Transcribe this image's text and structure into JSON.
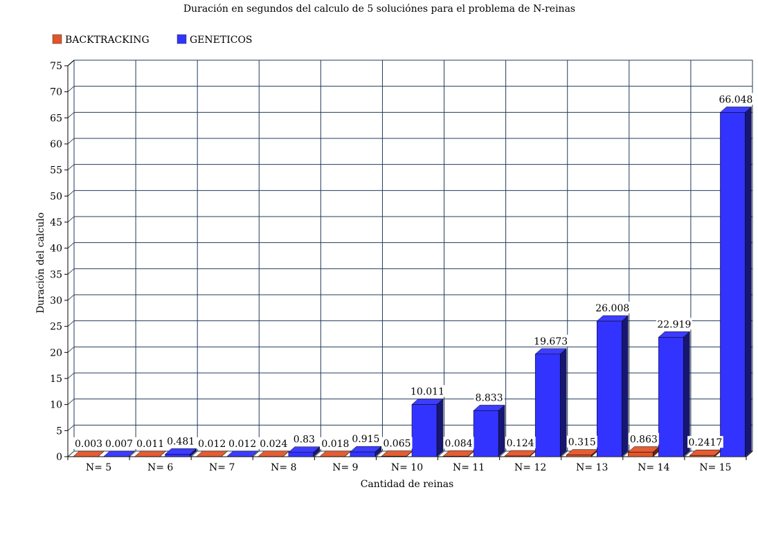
{
  "chart_data": {
    "type": "bar",
    "title": "Duración en segundos del calculo de 5 soluciónes para el problema de N-reinas",
    "xlabel": "Cantidad de reinas",
    "ylabel": "Duración del calculo",
    "categories": [
      "N= 5",
      "N= 6",
      "N= 7",
      "N= 8",
      "N= 9",
      "N= 10",
      "N= 11",
      "N= 12",
      "N= 13",
      "N= 14",
      "N= 15"
    ],
    "series": [
      {
        "name": "BACKTRACKING",
        "color": "#e2542a",
        "values": [
          0.003,
          0.011,
          0.012,
          0.024,
          0.018,
          0.065,
          0.084,
          0.124,
          0.315,
          0.863,
          0.2417
        ],
        "labels": [
          "0.003",
          "0.011",
          "0.012",
          "0.024",
          "0.018",
          "0.065",
          "0.084",
          "0.124",
          "0.315",
          "0.863",
          "0.2417"
        ]
      },
      {
        "name": "GENETICOS",
        "color": "#3333ff",
        "values": [
          0.007,
          0.481,
          0.012,
          0.83,
          0.915,
          10.011,
          8.833,
          19.673,
          26.008,
          22.919,
          66.048
        ],
        "labels": [
          "0.007",
          "0.481",
          "0.012",
          "0.83",
          "0.915",
          "10.011",
          "8.833",
          "19.673",
          "26.008",
          "22.919",
          "66.048"
        ]
      }
    ],
    "ylim": [
      0,
      75
    ],
    "yticks": [
      "0",
      "5",
      "10",
      "15",
      "20",
      "25",
      "30",
      "35",
      "40",
      "45",
      "50",
      "55",
      "60",
      "65",
      "70",
      "75"
    ],
    "grid": true,
    "legend_position": "top-left",
    "style": "3d"
  }
}
